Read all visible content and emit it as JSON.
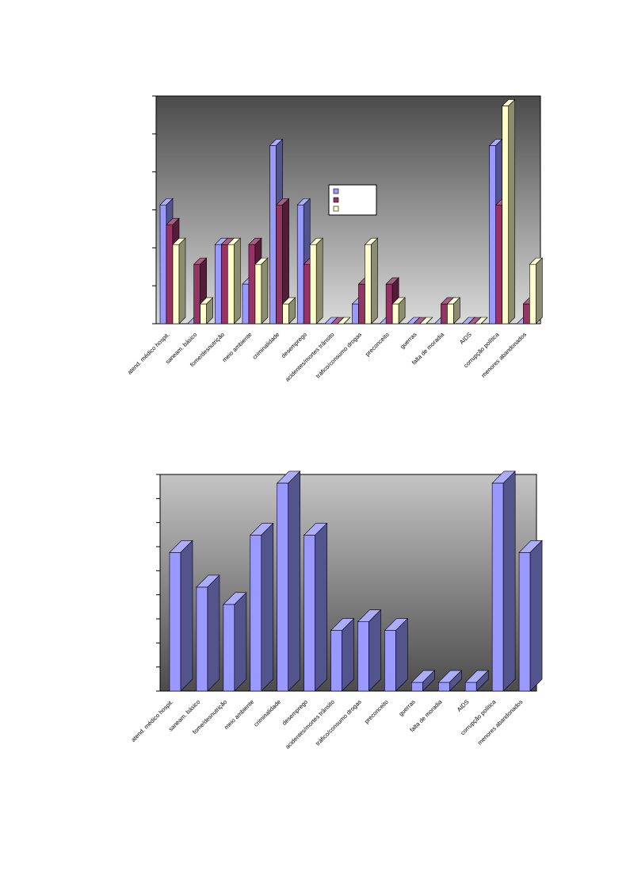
{
  "chart_data": [
    {
      "type": "bar",
      "title": "",
      "xlabel": "",
      "ylabel": "",
      "legend": {
        "position": "center-right",
        "entries": [
          "",
          "",
          ""
        ]
      },
      "grid": false,
      "colors": [
        "#9999ff",
        "#993366",
        "#ffffcc"
      ],
      "categories": [
        "atend. médico hospit.",
        "saneam. básico",
        "fome/desnutrição",
        "meio ambiente",
        "criminalidade",
        "desemprego",
        "acidentes/mortes trânsito",
        "tráfico/consumo drogas",
        "preconceito",
        "guerras",
        "falta de moradia",
        "AIDS",
        "corrupção política",
        "menores abandonados"
      ],
      "ylim": [
        0,
        11.5
      ],
      "series": [
        {
          "values": [
            6,
            0,
            4,
            2,
            9,
            6,
            0,
            1,
            0,
            0,
            0,
            0,
            9,
            0
          ]
        },
        {
          "values": [
            5,
            3,
            4,
            4,
            6,
            3,
            0,
            2,
            2,
            0,
            1,
            0,
            6,
            1
          ]
        },
        {
          "values": [
            4,
            1,
            4,
            3,
            1,
            4,
            0,
            4,
            1,
            0,
            1,
            0,
            11,
            3
          ]
        }
      ]
    },
    {
      "type": "bar",
      "title": "",
      "xlabel": "",
      "ylabel": "",
      "grid": false,
      "colors": [
        "#9999ff"
      ],
      "categories": [
        "atend. médico hospit.",
        "saneam. básico",
        "fome/desnutrição",
        "meio ambiente",
        "criminalidade",
        "desemprego",
        "acidentes/mortes trânsito",
        "tráfico/consumo drogas",
        "preconceito",
        "guerras",
        "falta de moradia",
        "AIDS",
        "corrupção política",
        "menores abandonados"
      ],
      "ylim": [
        0,
        25
      ],
      "series": [
        {
          "values": [
            16,
            12,
            10,
            18,
            24,
            18,
            7,
            8,
            7,
            1,
            1,
            1,
            24,
            16
          ]
        }
      ]
    }
  ]
}
